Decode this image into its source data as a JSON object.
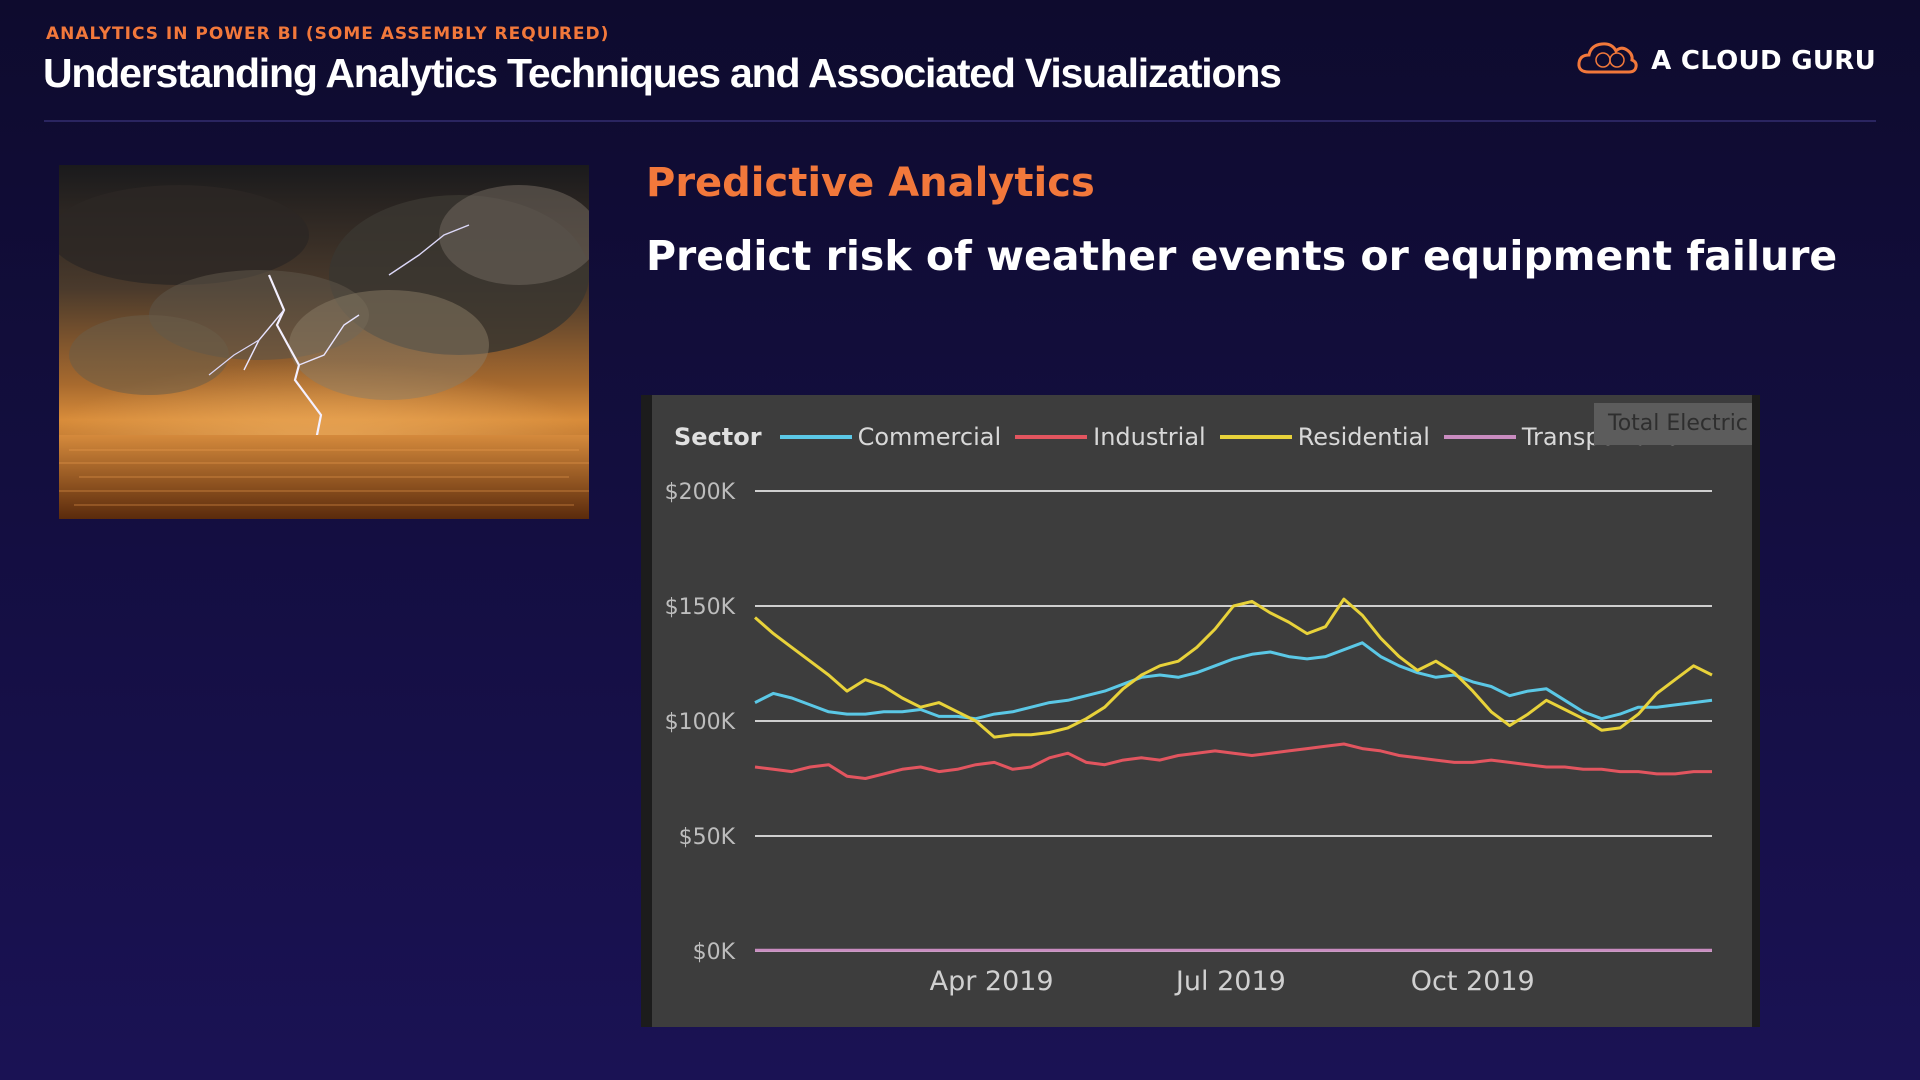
{
  "header": {
    "kicker": "ANALYTICS IN POWER BI (SOME ASSEMBLY REQUIRED)",
    "title": "Understanding Analytics Techniques and Associated Visualizations",
    "brand": "A CLOUD GURU",
    "brand_icon": "cloud-logo-icon"
  },
  "content": {
    "section_title": "Predictive Analytics",
    "section_subtitle": "Predict risk of weather events or equipment failure",
    "photo_icon": "storm-lightning-photo"
  },
  "colors": {
    "background": "#150f45",
    "accent": "#f2783b",
    "commercial": "#5bc8e6",
    "industrial": "#e2555f",
    "residential": "#e8d23a",
    "transportation": "#c98cc0"
  },
  "chart_data": {
    "type": "line",
    "legend_title": "Sector",
    "legend_position": "top-left",
    "tooltip_text": "Total Electric",
    "y_ticks": [
      "$200K",
      "$150K",
      "$100K",
      "$50K",
      "$0K"
    ],
    "ylim": [
      0,
      200000
    ],
    "x_ticks": [
      {
        "label": "Apr 2019",
        "x": "2019-04-01"
      },
      {
        "label": "Jul 2019",
        "x": "2019-07-01"
      },
      {
        "label": "Oct 2019",
        "x": "2019-10-01"
      }
    ],
    "xlim": [
      "2019-01-01",
      "2019-12-31"
    ],
    "grid": true,
    "x": [
      "2019-01-01",
      "2019-01-08",
      "2019-01-15",
      "2019-01-22",
      "2019-01-29",
      "2019-02-05",
      "2019-02-12",
      "2019-02-19",
      "2019-02-26",
      "2019-03-05",
      "2019-03-12",
      "2019-03-19",
      "2019-03-26",
      "2019-04-02",
      "2019-04-09",
      "2019-04-16",
      "2019-04-23",
      "2019-04-30",
      "2019-05-07",
      "2019-05-14",
      "2019-05-21",
      "2019-05-28",
      "2019-06-04",
      "2019-06-11",
      "2019-06-18",
      "2019-06-25",
      "2019-07-02",
      "2019-07-09",
      "2019-07-16",
      "2019-07-23",
      "2019-07-30",
      "2019-08-06",
      "2019-08-13",
      "2019-08-20",
      "2019-08-27",
      "2019-09-03",
      "2019-09-10",
      "2019-09-17",
      "2019-09-24",
      "2019-10-01",
      "2019-10-08",
      "2019-10-15",
      "2019-10-22",
      "2019-10-29",
      "2019-11-05",
      "2019-11-12",
      "2019-11-19",
      "2019-11-26",
      "2019-12-03",
      "2019-12-10",
      "2019-12-17",
      "2019-12-24",
      "2019-12-31"
    ],
    "series": [
      {
        "name": "Commercial",
        "values": [
          108000,
          112000,
          110000,
          107000,
          104000,
          103000,
          103000,
          104000,
          104000,
          105000,
          102000,
          102000,
          101000,
          103000,
          104000,
          106000,
          108000,
          109000,
          111000,
          113000,
          116000,
          119000,
          120000,
          119000,
          121000,
          124000,
          127000,
          129000,
          130000,
          128000,
          127000,
          128000,
          131000,
          134000,
          128000,
          124000,
          121000,
          119000,
          120000,
          117000,
          115000,
          111000,
          113000,
          114000,
          109000,
          104000,
          101000,
          103000,
          106000,
          106000,
          107000,
          108000,
          109000
        ]
      },
      {
        "name": "Industrial",
        "values": [
          80000,
          79000,
          78000,
          80000,
          81000,
          76000,
          75000,
          77000,
          79000,
          80000,
          78000,
          79000,
          81000,
          82000,
          79000,
          80000,
          84000,
          86000,
          82000,
          81000,
          83000,
          84000,
          83000,
          85000,
          86000,
          87000,
          86000,
          85000,
          86000,
          87000,
          88000,
          89000,
          90000,
          88000,
          87000,
          85000,
          84000,
          83000,
          82000,
          82000,
          83000,
          82000,
          81000,
          80000,
          80000,
          79000,
          79000,
          78000,
          78000,
          77000,
          77000,
          78000,
          78000
        ]
      },
      {
        "name": "Residential",
        "values": [
          145000,
          138000,
          132000,
          126000,
          120000,
          113000,
          118000,
          115000,
          110000,
          106000,
          108000,
          104000,
          100000,
          93000,
          94000,
          94000,
          95000,
          97000,
          101000,
          106000,
          114000,
          120000,
          124000,
          126000,
          132000,
          140000,
          150000,
          152000,
          147000,
          143000,
          138000,
          141000,
          153000,
          146000,
          136000,
          128000,
          122000,
          126000,
          121000,
          113000,
          104000,
          98000,
          103000,
          109000,
          105000,
          101000,
          96000,
          97000,
          103000,
          112000,
          118000,
          124000,
          120000
        ]
      },
      {
        "name": "Transportation",
        "values": [
          300,
          300,
          300,
          300,
          300,
          300,
          300,
          300,
          300,
          300,
          300,
          300,
          300,
          300,
          300,
          300,
          300,
          300,
          300,
          300,
          300,
          300,
          300,
          300,
          300,
          300,
          300,
          300,
          300,
          300,
          300,
          300,
          300,
          300,
          300,
          300,
          300,
          300,
          300,
          300,
          300,
          300,
          300,
          300,
          300,
          300,
          300,
          300,
          300,
          300,
          300,
          300,
          300
        ]
      }
    ]
  }
}
